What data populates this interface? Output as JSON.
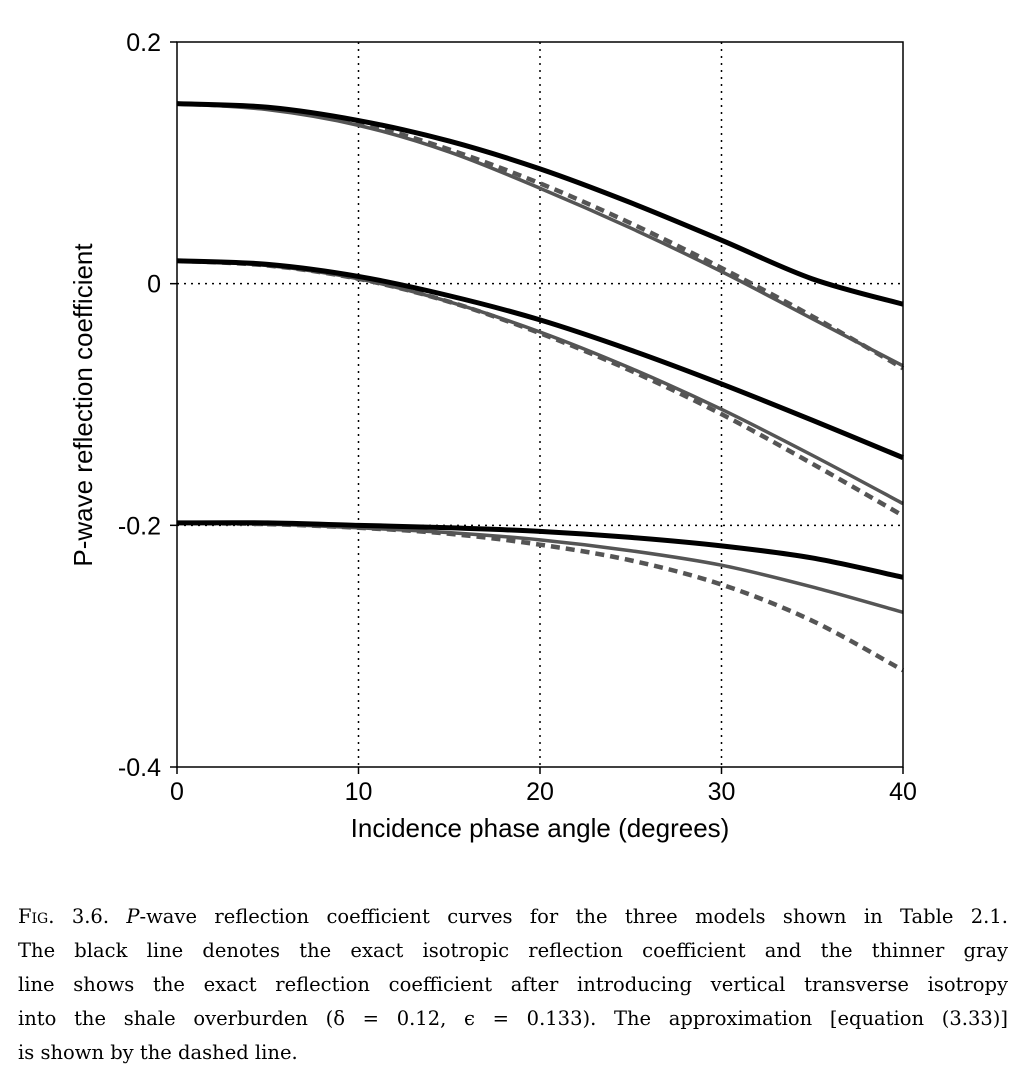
{
  "chart_data": {
    "type": "line",
    "title": "",
    "xlabel": "Incidence phase angle (degrees)",
    "ylabel": "P-wave reflection coefficient",
    "xlim": [
      0,
      40
    ],
    "ylim": [
      -0.4,
      0.2
    ],
    "xticks": [
      0,
      10,
      20,
      30,
      40
    ],
    "yticks": [
      -0.4,
      -0.2,
      0,
      0.2
    ],
    "xtick_labels": [
      "0",
      "10",
      "20",
      "30",
      "40"
    ],
    "ytick_labels": [
      "-0.4",
      "-0.2",
      "0",
      "0.2"
    ],
    "grid": "dotted lines at x=10,20,30 and y=0,-0.2",
    "styles": {
      "exact_isotropic": {
        "color": "#000000",
        "width": 5,
        "dash": "none"
      },
      "exact_vti": {
        "color": "#555555",
        "width": 3.5,
        "dash": "none"
      },
      "approximation": {
        "color": "#555555",
        "width": 4.5,
        "dash": "9,6"
      }
    },
    "x": [
      0,
      5,
      10,
      15,
      20,
      25,
      30,
      35,
      40
    ],
    "series": [
      {
        "group": "model-1",
        "style": "exact_isotropic",
        "values": [
          0.149,
          0.146,
          0.135,
          0.118,
          0.095,
          0.067,
          0.036,
          0.004,
          -0.017
        ]
      },
      {
        "group": "model-1",
        "style": "exact_vti",
        "values": [
          0.149,
          0.144,
          0.131,
          0.109,
          0.079,
          0.046,
          0.01,
          -0.029,
          -0.068
        ]
      },
      {
        "group": "model-1",
        "style": "approximation",
        "values": [
          0.149,
          0.145,
          0.133,
          0.111,
          0.083,
          0.05,
          0.013,
          -0.027,
          -0.07
        ]
      },
      {
        "group": "model-2",
        "style": "exact_isotropic",
        "values": [
          0.019,
          0.016,
          0.006,
          -0.01,
          -0.03,
          -0.055,
          -0.083,
          -0.113,
          -0.144
        ]
      },
      {
        "group": "model-2",
        "style": "exact_vti",
        "values": [
          0.019,
          0.015,
          0.004,
          -0.015,
          -0.04,
          -0.07,
          -0.104,
          -0.142,
          -0.182
        ]
      },
      {
        "group": "model-2",
        "style": "approximation",
        "values": [
          0.019,
          0.015,
          0.004,
          -0.015,
          -0.041,
          -0.072,
          -0.108,
          -0.149,
          -0.192
        ]
      },
      {
        "group": "model-3",
        "style": "exact_isotropic",
        "values": [
          -0.198,
          -0.198,
          -0.2,
          -0.202,
          -0.205,
          -0.21,
          -0.217,
          -0.227,
          -0.243
        ]
      },
      {
        "group": "model-3",
        "style": "exact_vti",
        "values": [
          -0.198,
          -0.199,
          -0.202,
          -0.206,
          -0.212,
          -0.221,
          -0.233,
          -0.251,
          -0.272
        ]
      },
      {
        "group": "model-3",
        "style": "approximation",
        "values": [
          -0.198,
          -0.199,
          -0.202,
          -0.207,
          -0.216,
          -0.229,
          -0.249,
          -0.279,
          -0.32
        ]
      }
    ]
  },
  "caption": {
    "fig_label": "Fig. 3.6.",
    "line1_a": " ",
    "line1_p": "P",
    "line1_b": "-wave reflection coefficient curves for the three models shown in Table 2.1.",
    "line2": "The black line denotes the exact isotropic reflection coefficient and the thinner gray",
    "line3": "line shows the exact reflection coefficient after introducing vertical transverse isotropy",
    "line4": "into the shale overburden (δ = 0.12, ϵ = 0.133). The approximation [equation (3.33)]",
    "line5": "is shown by the dashed line."
  }
}
